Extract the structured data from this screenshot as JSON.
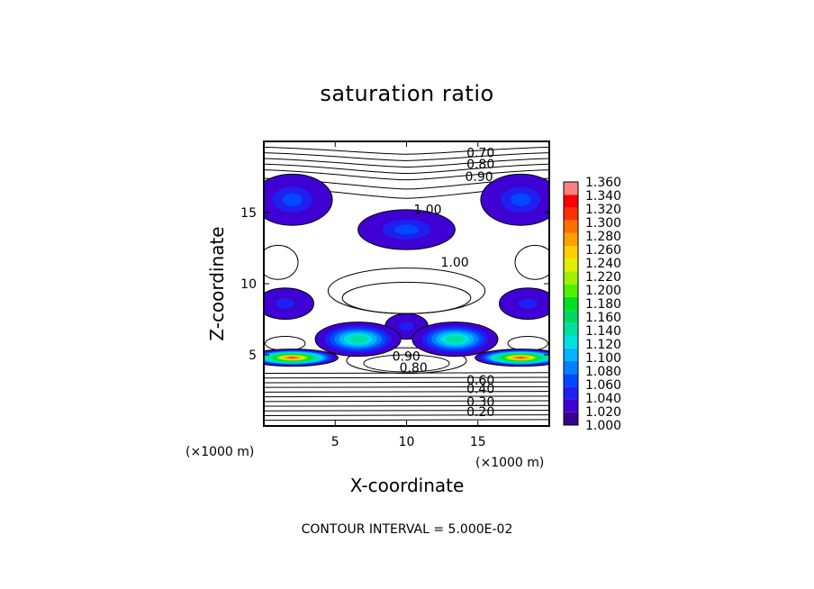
{
  "chart_data": {
    "type": "contour",
    "title": "saturation ratio",
    "xlabel": "X-coordinate",
    "ylabel": "Z-coordinate",
    "x_unit_label": "(×1000 m)",
    "z_unit_label": "(×1000 m)",
    "xlim": [
      0,
      20
    ],
    "ylim": [
      0,
      20
    ],
    "x_ticks": [
      5,
      10,
      15
    ],
    "y_ticks": [
      5,
      10,
      15
    ],
    "contour_interval_text": "CONTOUR INTERVAL = 5.000E-02",
    "contour_labels": [
      {
        "text": "0.70",
        "x": 14.2,
        "z": 18.9
      },
      {
        "text": "0.80",
        "x": 14.2,
        "z": 18.1
      },
      {
        "text": "0.90",
        "x": 14.1,
        "z": 17.2
      },
      {
        "text": "1.00",
        "x": 10.5,
        "z": 14.9
      },
      {
        "text": "1.00",
        "x": 12.4,
        "z": 11.2
      },
      {
        "text": "0.90",
        "x": 9.0,
        "z": 4.6
      },
      {
        "text": "0.80",
        "x": 9.5,
        "z": 3.8
      },
      {
        "text": "0.60",
        "x": 14.2,
        "z": 2.9
      },
      {
        "text": "0.40",
        "x": 14.2,
        "z": 2.3
      },
      {
        "text": "0.30",
        "x": 14.2,
        "z": 1.4
      },
      {
        "text": "0.20",
        "x": 14.2,
        "z": 0.7
      }
    ],
    "supersaturated_regions": [
      {
        "x": 2.0,
        "z": 15.9,
        "rx": 2.8,
        "rz": 1.8,
        "peak": 1.06
      },
      {
        "x": 18.0,
        "z": 15.9,
        "rx": 2.8,
        "rz": 1.8,
        "peak": 1.06
      },
      {
        "x": 10.0,
        "z": 13.8,
        "rx": 3.4,
        "rz": 1.4,
        "peak": 1.05
      },
      {
        "x": 1.5,
        "z": 8.6,
        "rx": 2.0,
        "rz": 1.1,
        "peak": 1.04
      },
      {
        "x": 18.5,
        "z": 8.6,
        "rx": 2.0,
        "rz": 1.1,
        "peak": 1.04
      },
      {
        "x": 10.0,
        "z": 7.0,
        "rx": 1.5,
        "rz": 0.9,
        "peak": 1.04
      },
      {
        "x": 6.6,
        "z": 6.1,
        "rx": 3.0,
        "rz": 1.2,
        "peak": 1.16
      },
      {
        "x": 13.4,
        "z": 6.1,
        "rx": 3.0,
        "rz": 1.2,
        "peak": 1.16
      },
      {
        "x": 2.0,
        "z": 4.8,
        "rx": 3.2,
        "rz": 0.6,
        "peak": 1.32
      },
      {
        "x": 18.0,
        "z": 4.8,
        "rx": 3.2,
        "rz": 0.6,
        "peak": 1.32
      }
    ],
    "colorbar": {
      "min": 1.0,
      "max": 1.36,
      "step": 0.02,
      "tick_labels": [
        "1.360",
        "1.340",
        "1.320",
        "1.300",
        "1.280",
        "1.260",
        "1.240",
        "1.220",
        "1.200",
        "1.180",
        "1.160",
        "1.140",
        "1.120",
        "1.100",
        "1.080",
        "1.060",
        "1.040",
        "1.020",
        "1.000"
      ],
      "colors": [
        "#3a0091",
        "#3f00d4",
        "#1f1ff0",
        "#0048ff",
        "#0080ff",
        "#00b4ff",
        "#00e0e0",
        "#00e0a0",
        "#00d860",
        "#00e020",
        "#50f000",
        "#a0f000",
        "#e0f000",
        "#ffd000",
        "#ffa000",
        "#ff7000",
        "#ff3000",
        "#ff0000",
        "#ff8080"
      ]
    }
  }
}
